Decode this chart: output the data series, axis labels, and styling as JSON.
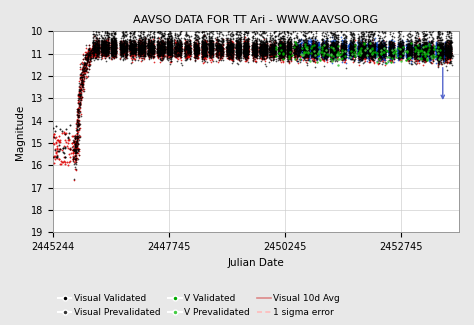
{
  "title": "AAVSO DATA FOR TT Ari - WWW.AAVSO.ORG",
  "xlabel": "Julian Date",
  "ylabel": "Magnitude",
  "xlim": [
    2445244,
    2454000
  ],
  "ylim": [
    19,
    10
  ],
  "xticks": [
    2445244,
    2447745,
    2450245,
    2452745
  ],
  "yticks": [
    10,
    11,
    12,
    13,
    14,
    15,
    16,
    17,
    18,
    19
  ],
  "bg_color": "#e8e8e8",
  "plot_bg_color": "#ffffff",
  "grid_color": "#cccccc",
  "title_fontsize": 8,
  "axis_fontsize": 7.5,
  "tick_fontsize": 7,
  "legend_fontsize": 6.5,
  "seed": 42,
  "high_state_start_jd": 2446100,
  "high_state_end_jd": 2453800,
  "colors": {
    "black": "#000000",
    "dark_gray": "#333333",
    "red": "#dd0000",
    "blue": "#0044cc",
    "green": "#00aa00",
    "light_green": "#44cc44",
    "pink": "#ffbbbb",
    "pink_line": "#dd8888",
    "purple_blue": "#5566cc"
  }
}
